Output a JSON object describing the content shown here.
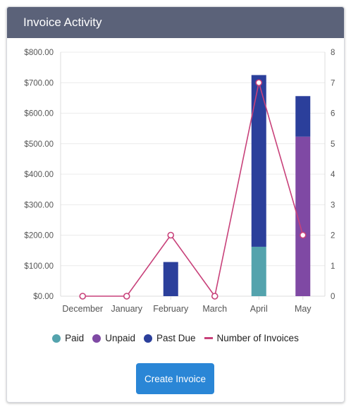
{
  "header": {
    "title": "Invoice Activity"
  },
  "button": {
    "label": "Create Invoice"
  },
  "colors": {
    "header_bg": "#5b6279",
    "paid": "#54a3ad",
    "unpaid": "#7f49a4",
    "past_due": "#2b3f9b",
    "invoices_line": "#c8417a",
    "button": "#2a86d6"
  },
  "chart_data": {
    "type": "bar",
    "stacked": true,
    "categories": [
      "December",
      "January",
      "February",
      "March",
      "April",
      "May"
    ],
    "series": [
      {
        "name": "Paid",
        "kind": "bar",
        "axis": "left",
        "color": "#54a3ad",
        "values": [
          0,
          0,
          0,
          0,
          162,
          0
        ]
      },
      {
        "name": "Unpaid",
        "kind": "bar",
        "axis": "left",
        "color": "#7f49a4",
        "values": [
          0,
          0,
          0,
          0,
          0,
          523
        ]
      },
      {
        "name": "Past Due",
        "kind": "bar",
        "axis": "left",
        "color": "#2b3f9b",
        "values": [
          0,
          0,
          112,
          0,
          563,
          133
        ]
      },
      {
        "name": "Number of Invoices",
        "kind": "line",
        "axis": "right",
        "color": "#c8417a",
        "values": [
          0,
          0,
          2,
          0,
          7,
          2
        ]
      }
    ],
    "y_left": {
      "range": [
        0,
        800
      ],
      "ticks": [
        "$0.00",
        "$100.00",
        "$200.00",
        "$300.00",
        "$400.00",
        "$500.00",
        "$600.00",
        "$700.00",
        "$800.00"
      ]
    },
    "y_right": {
      "range": [
        0,
        8
      ],
      "ticks": [
        "0",
        "1",
        "2",
        "3",
        "4",
        "5",
        "6",
        "7",
        "8"
      ]
    },
    "grid": true,
    "legend": "bottom"
  }
}
